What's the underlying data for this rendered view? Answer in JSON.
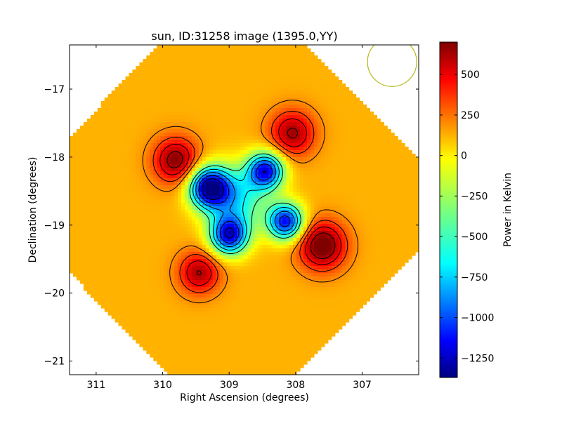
{
  "chart_data": {
    "type": "heatmap",
    "title": "sun, ID:31258 image (1395.0,YY)",
    "xlabel": "Right Ascension (degrees)",
    "ylabel": "Declination (degrees)",
    "xlim": [
      311.4,
      306.15
    ],
    "ylim": [
      -21.2,
      -16.35
    ],
    "x_ticks": [
      311,
      310,
      309,
      308,
      307
    ],
    "y_ticks": [
      -17,
      -18,
      -19,
      -20,
      -21
    ],
    "colorbar": {
      "label": "Power in Kelvin",
      "range": [
        -1370,
        700
      ],
      "ticks": [
        500,
        250,
        0,
        -250,
        -500,
        -750,
        -1000,
        -1250
      ],
      "colormap": "jet"
    },
    "field": {
      "center": [
        308.95,
        -18.7
      ],
      "background_level": 80,
      "components": [
        {
          "x": 309.3,
          "y": -18.45,
          "amplitude": -1330,
          "sigma": 0.21
        },
        {
          "x": 308.45,
          "y": -18.2,
          "amplitude": -1180,
          "sigma": 0.19
        },
        {
          "x": 308.15,
          "y": -18.95,
          "amplitude": -1180,
          "sigma": 0.19
        },
        {
          "x": 309.0,
          "y": -19.15,
          "amplitude": -1200,
          "sigma": 0.2
        },
        {
          "x": 308.9,
          "y": -18.6,
          "amplitude": -650,
          "sigma": 0.32
        },
        {
          "x": 309.8,
          "y": -18.05,
          "amplitude": 610,
          "sigma": 0.24
        },
        {
          "x": 308.05,
          "y": -17.65,
          "amplitude": 550,
          "sigma": 0.24
        },
        {
          "x": 307.6,
          "y": -19.3,
          "amplitude": 700,
          "sigma": 0.25
        },
        {
          "x": 309.45,
          "y": -19.7,
          "amplitude": 530,
          "sigma": 0.22
        }
      ],
      "contour_levels": [
        -1200,
        -1000,
        -800,
        -600,
        -400,
        150,
        300,
        450,
        600
      ]
    },
    "beam": {
      "ra": 306.55,
      "dec": -16.6,
      "radius_deg": 0.37,
      "color": "#b5b81a"
    }
  }
}
